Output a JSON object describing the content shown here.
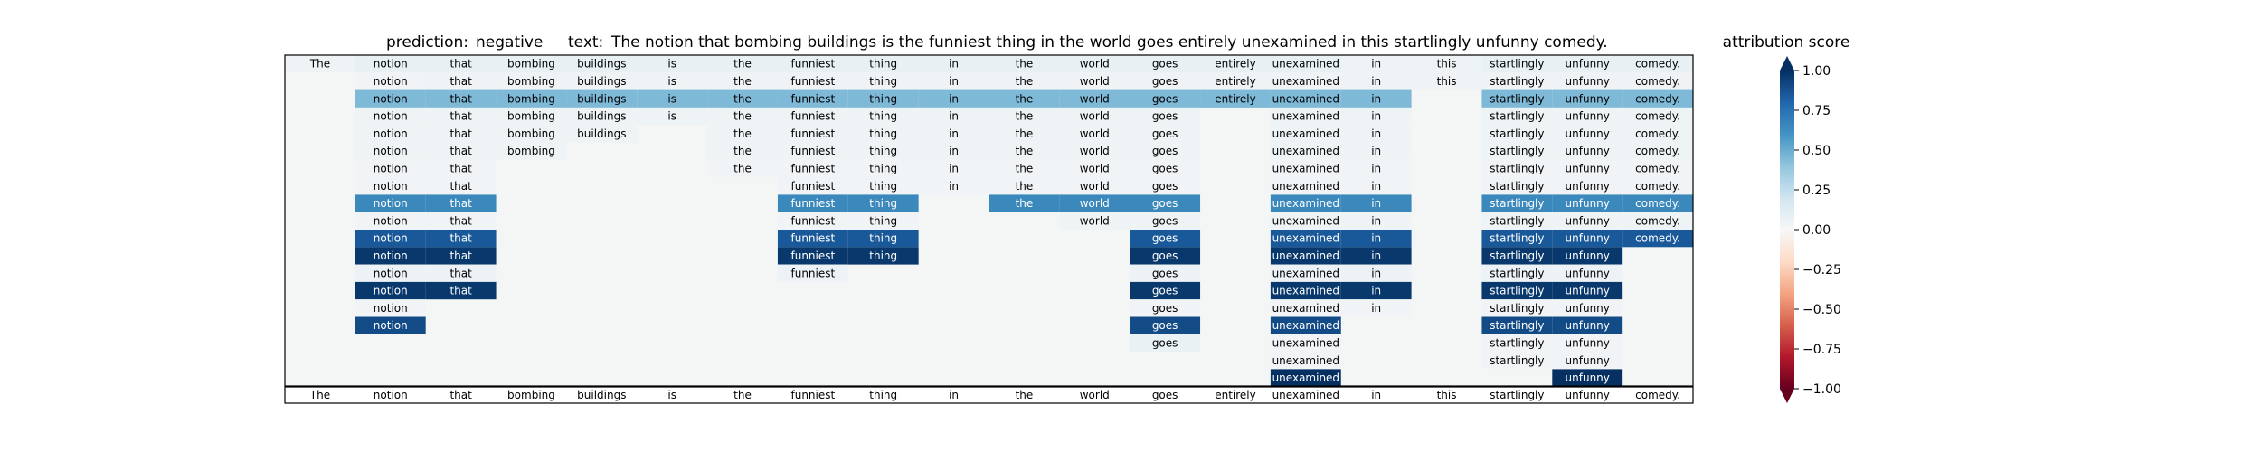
{
  "header": {
    "prediction_label": "prediction:",
    "prediction_value": "negative",
    "text_label": "text:",
    "text_value": "The notion that bombing buildings is the funniest thing in the world goes entirely unexamined in this startlingly unfunny comedy."
  },
  "colorbar": {
    "title": "attribution score",
    "colormap": "RdBu",
    "ticks": [
      "1.00",
      "0.75",
      "0.50",
      "0.25",
      "0.00",
      "−0.25",
      "−0.50",
      "−0.75",
      "−1.00"
    ],
    "range": [
      -1,
      1
    ]
  },
  "chart_data": {
    "type": "heatmap",
    "tokens": [
      "The",
      "notion",
      "that",
      "bombing",
      "buildings",
      "is",
      "the",
      "funniest",
      "thing",
      "in",
      "the",
      "world",
      "goes",
      "entirely",
      "unexamined",
      "in",
      "this",
      "startlingly",
      "unfunny",
      "comedy."
    ],
    "rows": [
      [
        0.05,
        0.08,
        0.08,
        0.08,
        0.08,
        0.08,
        0.08,
        0.08,
        0.08,
        0.08,
        0.08,
        0.08,
        0.08,
        0.08,
        0.08,
        0.05,
        0.05,
        0.08,
        0.08,
        0.08
      ],
      [
        null,
        0.03,
        0.04,
        0.04,
        0.04,
        0.04,
        0.04,
        0.04,
        0.04,
        0.04,
        0.04,
        0.04,
        0.04,
        0.04,
        0.04,
        0.04,
        0.04,
        0.04,
        0.04,
        0.04
      ],
      [
        null,
        0.45,
        0.45,
        0.45,
        0.45,
        0.45,
        0.45,
        0.45,
        0.45,
        0.45,
        0.45,
        0.45,
        0.45,
        0.45,
        0.45,
        0.45,
        null,
        0.45,
        0.45,
        0.45
      ],
      [
        null,
        0.05,
        0.05,
        0.05,
        0.05,
        0.05,
        0.05,
        0.05,
        0.05,
        0.05,
        0.05,
        0.05,
        0.05,
        null,
        0.05,
        0.05,
        null,
        0.05,
        0.05,
        0.05
      ],
      [
        null,
        0.05,
        0.05,
        0.05,
        0.05,
        null,
        0.05,
        0.05,
        0.05,
        0.05,
        0.05,
        0.05,
        0.05,
        null,
        0.05,
        0.05,
        null,
        0.05,
        0.05,
        0.05
      ],
      [
        null,
        0.05,
        0.05,
        0.05,
        null,
        null,
        0.05,
        0.05,
        0.05,
        0.05,
        0.05,
        0.05,
        0.05,
        null,
        0.05,
        0.05,
        null,
        0.05,
        0.05,
        0.05
      ],
      [
        null,
        0.03,
        0.03,
        null,
        null,
        null,
        0.03,
        0.03,
        0.03,
        0.03,
        0.03,
        0.03,
        0.03,
        null,
        0.03,
        0.03,
        null,
        0.03,
        0.03,
        0.03
      ],
      [
        null,
        0.03,
        0.03,
        null,
        null,
        null,
        null,
        0.03,
        0.03,
        0.03,
        0.03,
        0.03,
        0.03,
        null,
        0.03,
        0.03,
        null,
        0.03,
        0.03,
        0.03
      ],
      [
        null,
        0.65,
        0.65,
        null,
        null,
        null,
        null,
        0.65,
        0.65,
        null,
        0.65,
        0.65,
        0.65,
        null,
        0.65,
        0.65,
        null,
        0.65,
        0.65,
        0.65
      ],
      [
        null,
        0.03,
        0.03,
        null,
        null,
        null,
        null,
        0.03,
        0.03,
        null,
        null,
        0.05,
        0.05,
        null,
        0.05,
        0.05,
        null,
        0.05,
        0.05,
        0.05
      ],
      [
        null,
        0.85,
        0.85,
        null,
        null,
        null,
        null,
        0.85,
        0.85,
        null,
        null,
        null,
        0.85,
        null,
        0.85,
        0.85,
        null,
        0.85,
        0.85,
        0.85
      ],
      [
        null,
        0.97,
        0.97,
        null,
        null,
        null,
        null,
        0.97,
        0.97,
        null,
        null,
        null,
        0.97,
        null,
        0.97,
        0.97,
        null,
        0.97,
        0.97,
        null
      ],
      [
        null,
        0.06,
        0.06,
        null,
        null,
        null,
        null,
        0.06,
        null,
        null,
        null,
        null,
        0.06,
        null,
        0.06,
        0.06,
        null,
        0.06,
        0.06,
        null
      ],
      [
        null,
        0.97,
        0.97,
        null,
        null,
        null,
        null,
        null,
        null,
        null,
        null,
        null,
        0.97,
        null,
        0.97,
        0.97,
        null,
        0.97,
        0.97,
        null
      ],
      [
        null,
        0.03,
        null,
        null,
        null,
        null,
        null,
        null,
        null,
        null,
        null,
        null,
        0.03,
        null,
        0.03,
        0.03,
        null,
        0.03,
        0.03,
        null
      ],
      [
        null,
        0.9,
        null,
        null,
        null,
        null,
        null,
        null,
        null,
        null,
        null,
        null,
        0.9,
        null,
        0.9,
        null,
        null,
        0.9,
        0.9,
        null
      ],
      [
        null,
        null,
        null,
        null,
        null,
        null,
        null,
        null,
        null,
        null,
        null,
        null,
        0.07,
        null,
        0.03,
        null,
        null,
        0.03,
        0.03,
        null
      ],
      [
        null,
        null,
        null,
        null,
        null,
        null,
        null,
        null,
        null,
        null,
        null,
        null,
        null,
        null,
        0.03,
        null,
        null,
        0.03,
        0.03,
        null
      ],
      [
        null,
        null,
        null,
        null,
        null,
        null,
        null,
        null,
        null,
        null,
        null,
        null,
        null,
        null,
        1.0,
        null,
        null,
        null,
        1.0,
        null
      ]
    ],
    "value_range": [
      -1,
      1
    ]
  }
}
